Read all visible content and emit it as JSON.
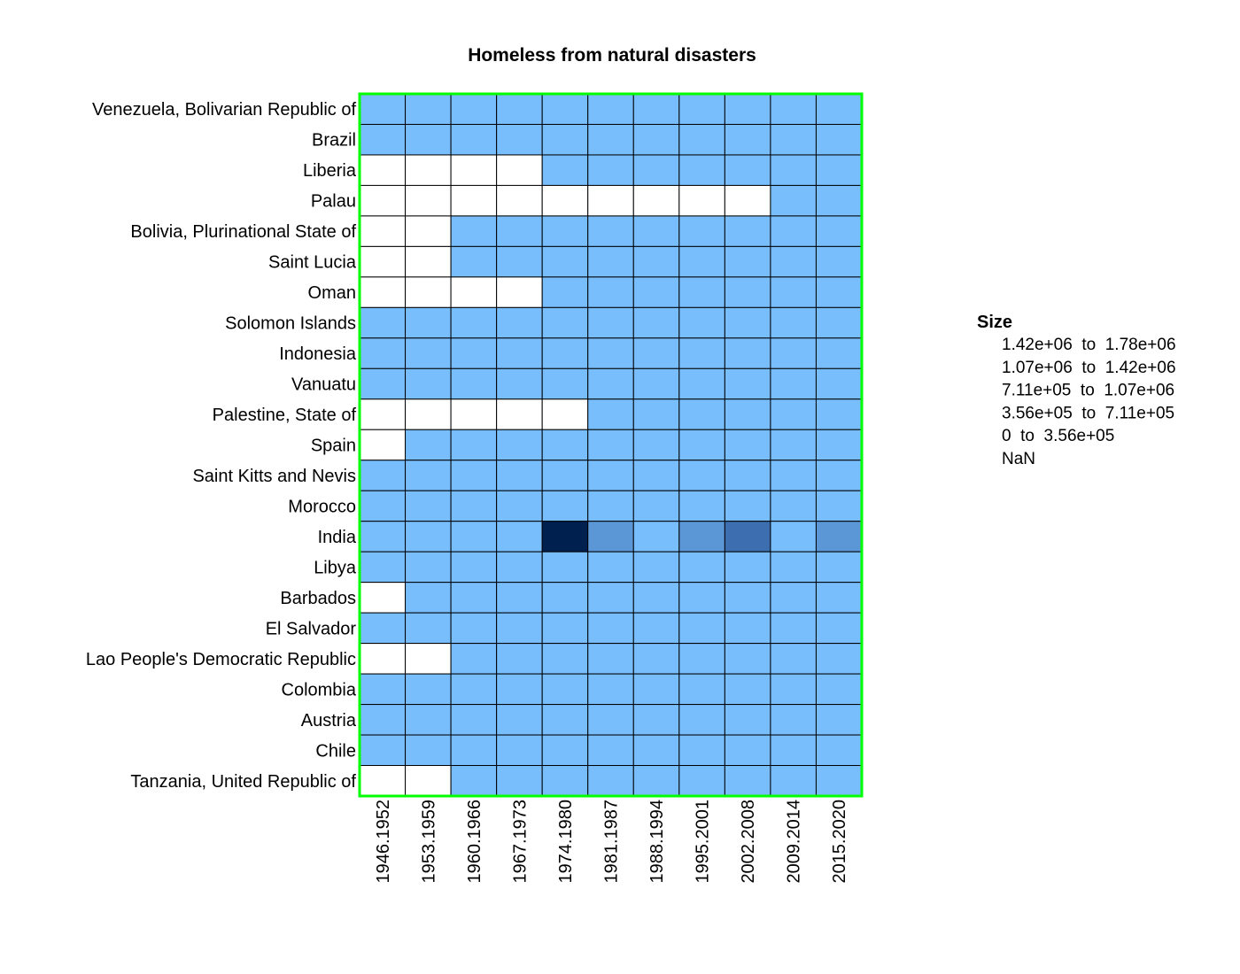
{
  "chart_data": {
    "type": "heatmap",
    "title": "Homeless from natural disasters",
    "xlabel": "",
    "ylabel": "",
    "columns": [
      "1946.1952",
      "1953.1959",
      "1960.1966",
      "1967.1973",
      "1974.1980",
      "1981.1987",
      "1988.1994",
      "1995.2001",
      "2002.2008",
      "2009.2014",
      "2015.2020"
    ],
    "rows": [
      "Venezuela, Bolivarian Republic of",
      "Brazil",
      "Liberia",
      "Palau",
      "Bolivia, Plurinational State of",
      "Saint Lucia",
      "Oman",
      "Solomon Islands",
      "Indonesia",
      "Vanuatu",
      "Palestine, State of",
      "Spain",
      "Saint Kitts and Nevis",
      "Morocco",
      "India",
      "Libya",
      "Barbados",
      "El Salvador",
      "Lao People's Democratic Republic",
      "Colombia",
      "Austria",
      "Chile",
      "Tanzania, United Republic of"
    ],
    "bins": [
      {
        "label": "1.42e+06  to  1.78e+06",
        "color": "#00204f"
      },
      {
        "label": "1.07e+06  to  1.42e+06",
        "color": "#2e5a9c"
      },
      {
        "label": "7.11e+05  to  1.07e+06",
        "color": "#3d6eb0"
      },
      {
        "label": "3.56e+05  to  7.11e+05",
        "color": "#5b97d6"
      },
      {
        "label": "0  to  3.56e+05",
        "color": "#78bdfc"
      },
      {
        "label": "NaN",
        "color": "#ffffff"
      }
    ],
    "matrix": [
      [
        4,
        4,
        4,
        4,
        4,
        4,
        4,
        4,
        4,
        4,
        4
      ],
      [
        4,
        4,
        4,
        4,
        4,
        4,
        4,
        4,
        4,
        4,
        4
      ],
      [
        5,
        5,
        5,
        5,
        4,
        4,
        4,
        4,
        4,
        4,
        4
      ],
      [
        5,
        5,
        5,
        5,
        5,
        5,
        5,
        5,
        5,
        4,
        4
      ],
      [
        5,
        5,
        4,
        4,
        4,
        4,
        4,
        4,
        4,
        4,
        4
      ],
      [
        5,
        5,
        4,
        4,
        4,
        4,
        4,
        4,
        4,
        4,
        4
      ],
      [
        5,
        5,
        5,
        5,
        4,
        4,
        4,
        4,
        4,
        4,
        4
      ],
      [
        4,
        4,
        4,
        4,
        4,
        4,
        4,
        4,
        4,
        4,
        4
      ],
      [
        4,
        4,
        4,
        4,
        4,
        4,
        4,
        4,
        4,
        4,
        4
      ],
      [
        4,
        4,
        4,
        4,
        4,
        4,
        4,
        4,
        4,
        4,
        4
      ],
      [
        5,
        5,
        5,
        5,
        5,
        4,
        4,
        4,
        4,
        4,
        4
      ],
      [
        5,
        4,
        4,
        4,
        4,
        4,
        4,
        4,
        4,
        4,
        4
      ],
      [
        4,
        4,
        4,
        4,
        4,
        4,
        4,
        4,
        4,
        4,
        4
      ],
      [
        4,
        4,
        4,
        4,
        4,
        4,
        4,
        4,
        4,
        4,
        4
      ],
      [
        4,
        4,
        4,
        4,
        0,
        3,
        4,
        3,
        2,
        4,
        3
      ],
      [
        4,
        4,
        4,
        4,
        4,
        4,
        4,
        4,
        4,
        4,
        4
      ],
      [
        5,
        4,
        4,
        4,
        4,
        4,
        4,
        4,
        4,
        4,
        4
      ],
      [
        4,
        4,
        4,
        4,
        4,
        4,
        4,
        4,
        4,
        4,
        4
      ],
      [
        5,
        5,
        4,
        4,
        4,
        4,
        4,
        4,
        4,
        4,
        4
      ],
      [
        4,
        4,
        4,
        4,
        4,
        4,
        4,
        4,
        4,
        4,
        4
      ],
      [
        4,
        4,
        4,
        4,
        4,
        4,
        4,
        4,
        4,
        4,
        4
      ],
      [
        4,
        4,
        4,
        4,
        4,
        4,
        4,
        4,
        4,
        4,
        4
      ],
      [
        5,
        5,
        4,
        4,
        4,
        4,
        4,
        4,
        4,
        4,
        4
      ]
    ],
    "legend": {
      "title": "Size",
      "position": "right"
    },
    "frame_color": "#00ff00",
    "cell_border_color": "#000000"
  }
}
